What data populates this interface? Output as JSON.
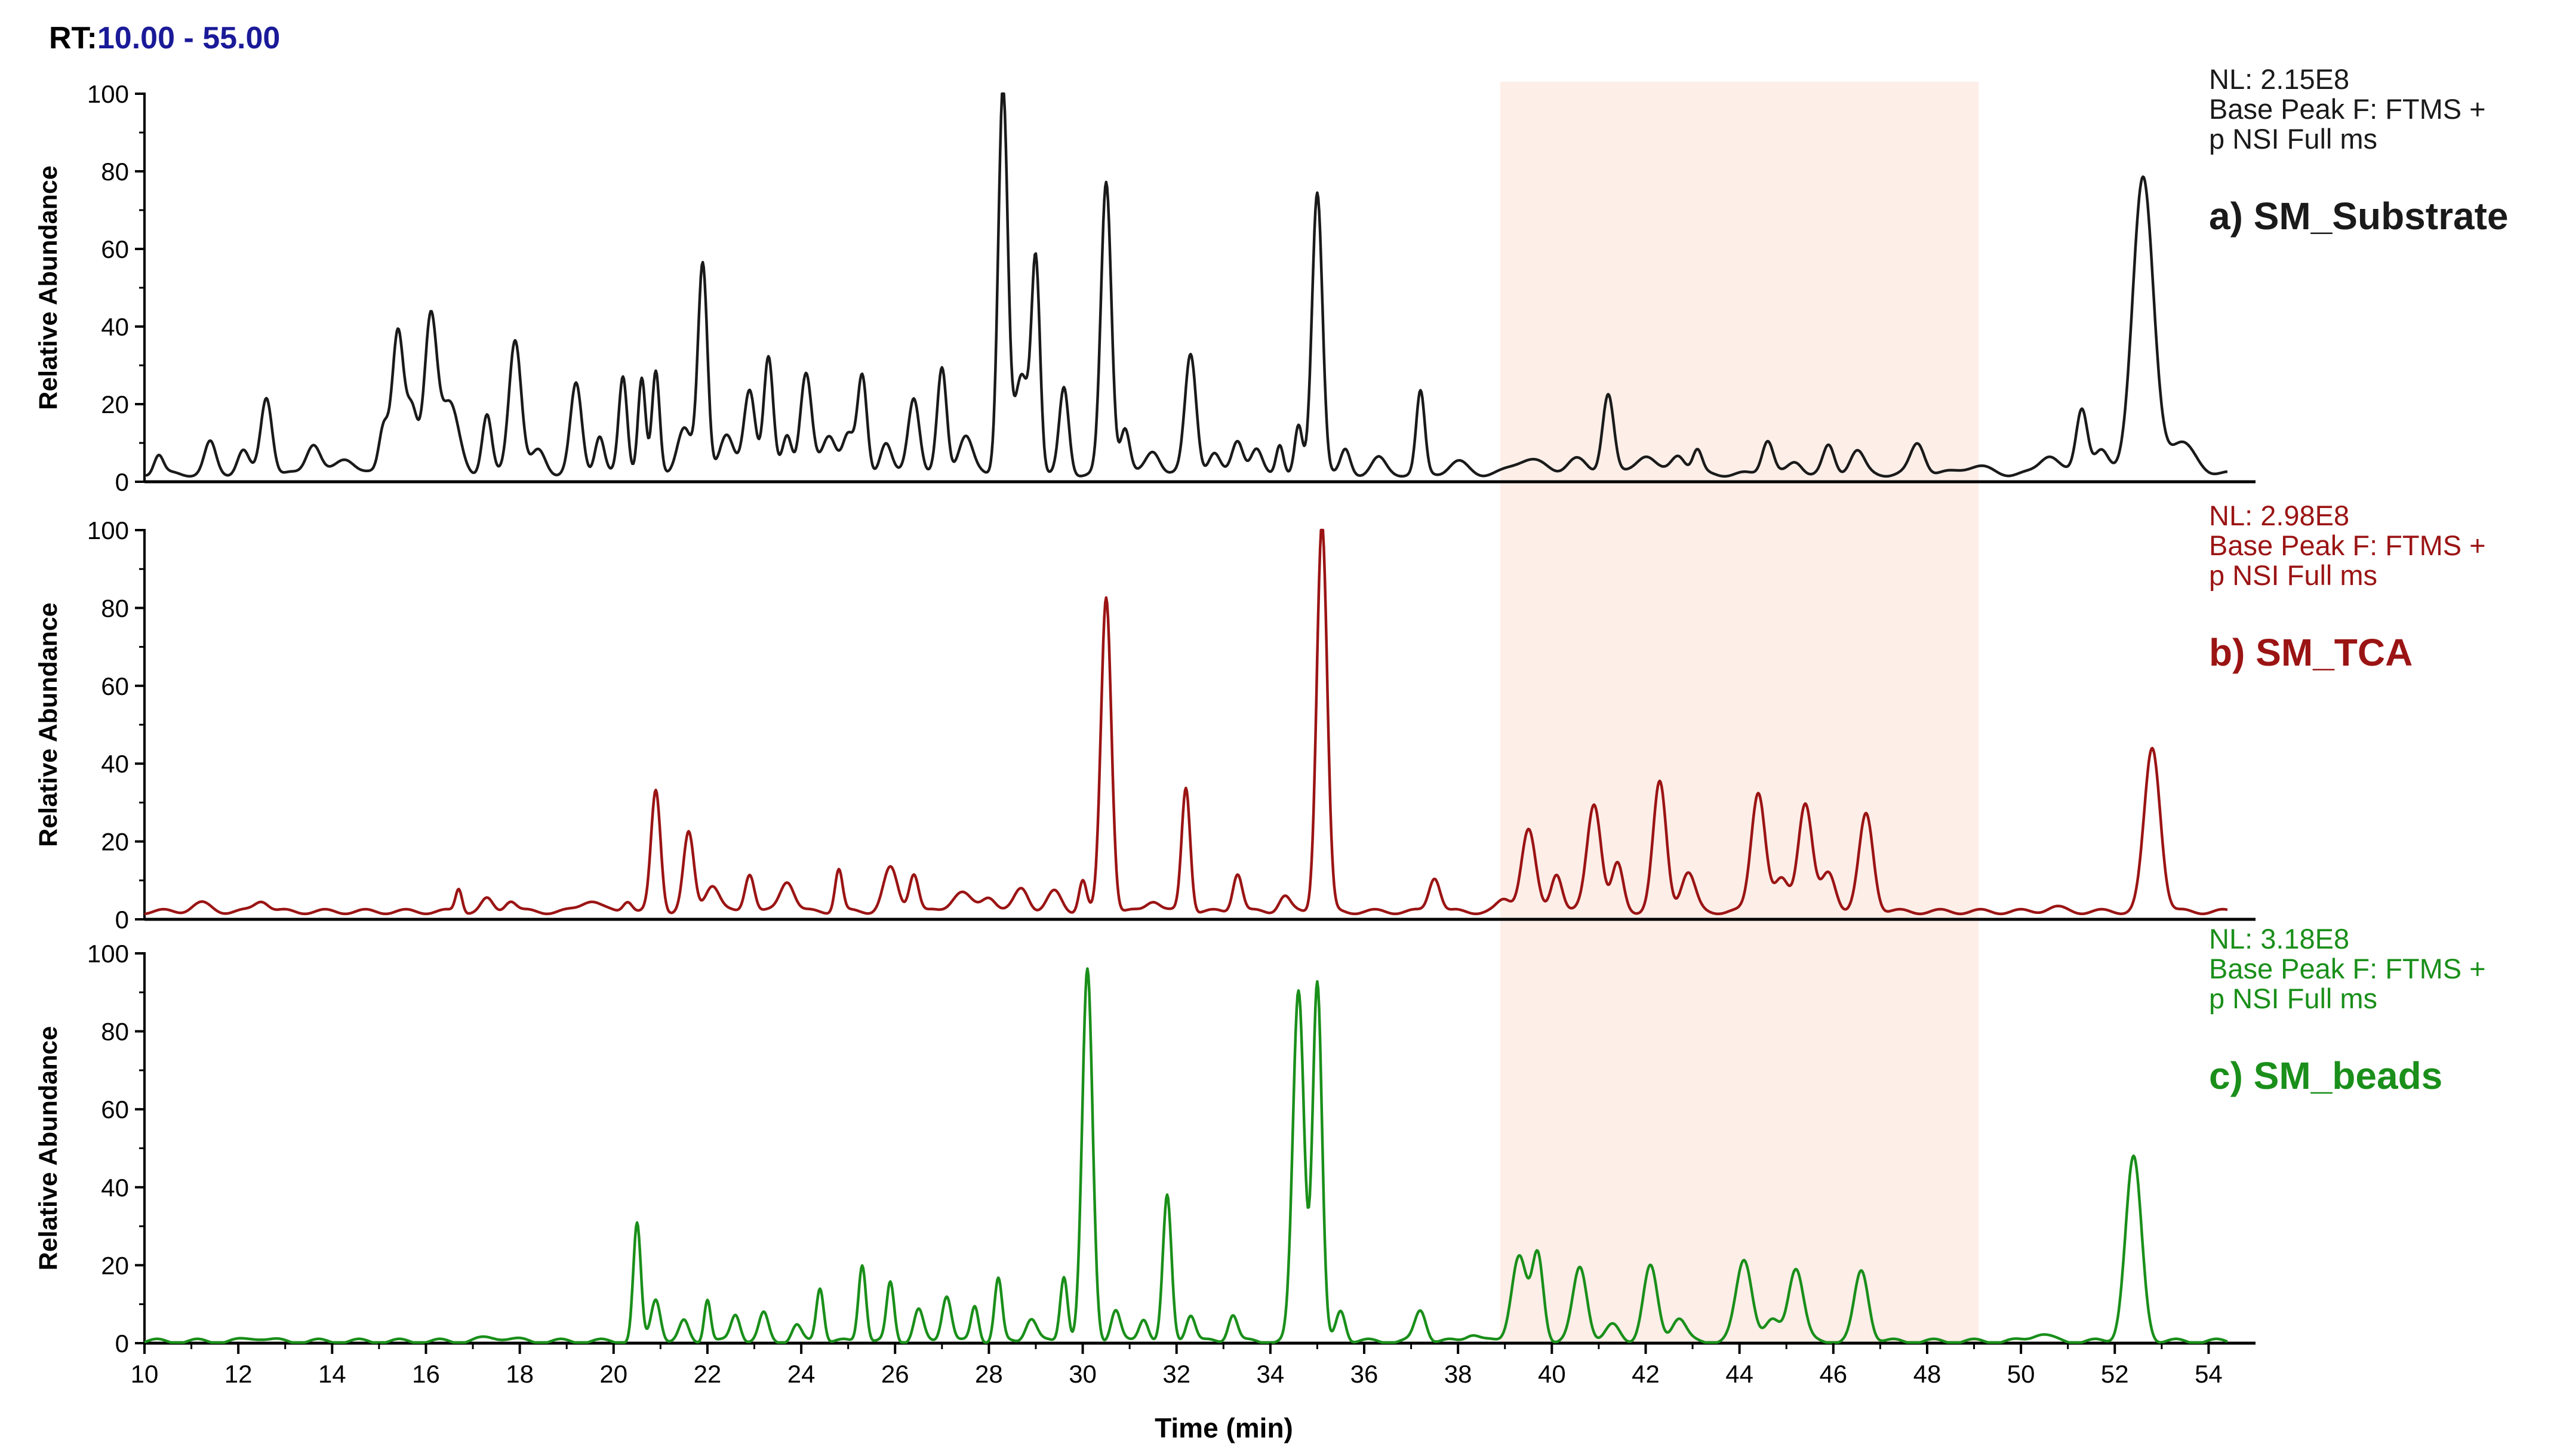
{
  "header": {
    "rt_prefix": "RT:",
    "rt_range": "10.00 - 55.00"
  },
  "colors": {
    "highlight": "#fdeee8",
    "axis": "#000000"
  },
  "chart_data": {
    "type": "line",
    "xlabel": "Time (min)",
    "ylabel": "Relative Abundance",
    "xlim": [
      10,
      55
    ],
    "ylim": [
      0,
      100
    ],
    "xticks": [
      10,
      12,
      14,
      16,
      18,
      20,
      22,
      24,
      26,
      28,
      30,
      32,
      34,
      36,
      38,
      40,
      42,
      44,
      46,
      48,
      50,
      52,
      54
    ],
    "yticks": [
      0,
      20,
      40,
      60,
      80,
      100
    ],
    "highlight_region": [
      38.9,
      49.1
    ],
    "grid": false,
    "panels": [
      {
        "label": "a) SM_Substrate",
        "nl": "NL: 2.15E8",
        "info_line1": "Base Peak F: FTMS +",
        "info_line2": "p NSI Full ms",
        "color": "#1a1a1a",
        "baseline": 2,
        "peaks": [
          [
            10.3,
            5,
            0.1
          ],
          [
            11.4,
            8,
            0.12
          ],
          [
            12.1,
            6,
            0.12
          ],
          [
            12.6,
            20,
            0.12
          ],
          [
            13.6,
            8,
            0.15
          ],
          [
            14.3,
            4,
            0.2
          ],
          [
            15.1,
            12,
            0.1
          ],
          [
            15.4,
            37,
            0.12
          ],
          [
            15.7,
            16,
            0.12
          ],
          [
            16.1,
            40,
            0.13
          ],
          [
            16.5,
            18,
            0.2
          ],
          [
            17.3,
            15,
            0.1
          ],
          [
            17.9,
            35,
            0.13
          ],
          [
            18.4,
            6,
            0.15
          ],
          [
            19.2,
            23,
            0.12
          ],
          [
            19.7,
            10,
            0.1
          ],
          [
            20.2,
            25,
            0.09
          ],
          [
            20.6,
            25,
            0.08
          ],
          [
            20.9,
            26,
            0.08
          ],
          [
            21.5,
            12,
            0.15
          ],
          [
            21.9,
            54,
            0.1
          ],
          [
            22.4,
            10,
            0.15
          ],
          [
            22.9,
            22,
            0.12
          ],
          [
            23.3,
            30,
            0.1
          ],
          [
            23.7,
            10,
            0.1
          ],
          [
            24.1,
            26,
            0.12
          ],
          [
            24.6,
            10,
            0.15
          ],
          [
            25.0,
            10,
            0.12
          ],
          [
            25.3,
            25,
            0.1
          ],
          [
            25.8,
            8,
            0.12
          ],
          [
            26.4,
            20,
            0.12
          ],
          [
            27.0,
            27,
            0.1
          ],
          [
            27.5,
            10,
            0.15
          ],
          [
            28.3,
            100,
            0.1
          ],
          [
            28.7,
            25,
            0.15
          ],
          [
            29.0,
            54,
            0.09
          ],
          [
            29.6,
            22,
            0.1
          ],
          [
            30.5,
            75,
            0.11
          ],
          [
            30.9,
            12,
            0.1
          ],
          [
            31.5,
            6,
            0.15
          ],
          [
            32.3,
            31,
            0.12
          ],
          [
            32.8,
            5,
            0.12
          ],
          [
            33.3,
            9,
            0.12
          ],
          [
            33.7,
            6,
            0.12
          ],
          [
            34.2,
            8,
            0.08
          ],
          [
            34.6,
            12,
            0.08
          ],
          [
            35.0,
            73,
            0.11
          ],
          [
            35.6,
            6,
            0.1
          ],
          [
            36.3,
            4,
            0.15
          ],
          [
            37.2,
            21,
            0.09
          ],
          [
            38.0,
            3,
            0.2
          ],
          [
            39.5,
            4,
            0.3
          ],
          [
            40.5,
            4,
            0.2
          ],
          [
            41.2,
            21,
            0.12
          ],
          [
            42.0,
            5,
            0.2
          ],
          [
            42.7,
            5,
            0.15
          ],
          [
            43.1,
            6,
            0.1
          ],
          [
            44.6,
            9,
            0.12
          ],
          [
            45.2,
            3,
            0.15
          ],
          [
            45.9,
            7,
            0.12
          ],
          [
            46.5,
            6,
            0.15
          ],
          [
            47.8,
            8,
            0.15
          ],
          [
            49.0,
            2,
            0.3
          ],
          [
            50.6,
            5,
            0.2
          ],
          [
            51.3,
            17,
            0.12
          ],
          [
            51.7,
            6,
            0.15
          ],
          [
            52.6,
            76,
            0.22
          ],
          [
            53.4,
            8,
            0.3
          ]
        ]
      },
      {
        "label": "b) SM_TCA",
        "nl": "NL: 2.98E8",
        "info_line1": "Base Peak F: FTMS +",
        "info_line2": "p NSI Full ms",
        "color": "#9b1414",
        "baseline": 2,
        "peaks": [
          [
            11.2,
            2,
            0.2
          ],
          [
            12.5,
            3,
            0.15
          ],
          [
            16.7,
            6,
            0.07
          ],
          [
            17.3,
            3,
            0.12
          ],
          [
            17.8,
            3,
            0.12
          ],
          [
            19.5,
            3,
            0.2
          ],
          [
            20.3,
            3,
            0.1
          ],
          [
            20.9,
            31,
            0.1
          ],
          [
            21.6,
            20,
            0.11
          ],
          [
            22.1,
            7,
            0.15
          ],
          [
            22.9,
            10,
            0.1
          ],
          [
            23.7,
            8,
            0.15
          ],
          [
            24.8,
            11,
            0.08
          ],
          [
            25.9,
            11,
            0.15
          ],
          [
            26.4,
            10,
            0.1
          ],
          [
            27.4,
            5,
            0.2
          ],
          [
            28.0,
            4,
            0.15
          ],
          [
            28.7,
            6,
            0.15
          ],
          [
            29.4,
            5,
            0.15
          ],
          [
            30.0,
            8,
            0.08
          ],
          [
            30.5,
            81,
            0.11
          ],
          [
            31.5,
            3,
            0.15
          ],
          [
            32.2,
            32,
            0.09
          ],
          [
            33.3,
            10,
            0.1
          ],
          [
            34.3,
            4,
            0.12
          ],
          [
            35.1,
            100,
            0.11
          ],
          [
            37.5,
            9,
            0.12
          ],
          [
            39.0,
            3,
            0.15
          ],
          [
            39.5,
            21,
            0.15
          ],
          [
            40.1,
            10,
            0.12
          ],
          [
            40.9,
            28,
            0.15
          ],
          [
            41.4,
            12,
            0.12
          ],
          [
            42.3,
            33,
            0.14
          ],
          [
            42.9,
            10,
            0.15
          ],
          [
            44.4,
            31,
            0.15
          ],
          [
            44.9,
            8,
            0.15
          ],
          [
            45.4,
            28,
            0.15
          ],
          [
            45.9,
            10,
            0.15
          ],
          [
            46.7,
            25,
            0.15
          ],
          [
            50.7,
            1,
            0.2
          ],
          [
            52.8,
            42,
            0.17
          ]
        ]
      },
      {
        "label": "c) SM_beads",
        "nl": "NL: 3.18E8",
        "info_line1": "Base Peak F: FTMS +",
        "info_line2": "p NSI Full ms",
        "color": "#1a8f1a",
        "baseline": 0.5,
        "peaks": [
          [
            12.4,
            1,
            0.2
          ],
          [
            17.5,
            1,
            0.3
          ],
          [
            20.5,
            30,
            0.08
          ],
          [
            20.9,
            11,
            0.1
          ],
          [
            21.5,
            5,
            0.1
          ],
          [
            22.0,
            11,
            0.07
          ],
          [
            22.6,
            7,
            0.1
          ],
          [
            23.2,
            7,
            0.1
          ],
          [
            23.9,
            4,
            0.1
          ],
          [
            24.4,
            14,
            0.08
          ],
          [
            25.3,
            20,
            0.08
          ],
          [
            25.9,
            15,
            0.08
          ],
          [
            26.5,
            8,
            0.1
          ],
          [
            27.1,
            12,
            0.1
          ],
          [
            27.7,
            9,
            0.08
          ],
          [
            28.2,
            16,
            0.08
          ],
          [
            28.9,
            6,
            0.12
          ],
          [
            29.6,
            17,
            0.08
          ],
          [
            30.1,
            95,
            0.11
          ],
          [
            30.7,
            8,
            0.1
          ],
          [
            31.3,
            6,
            0.1
          ],
          [
            31.8,
            37,
            0.09
          ],
          [
            32.3,
            7,
            0.1
          ],
          [
            33.2,
            7,
            0.1
          ],
          [
            34.6,
            90,
            0.12
          ],
          [
            35.0,
            92,
            0.1
          ],
          [
            35.5,
            8,
            0.1
          ],
          [
            37.2,
            8,
            0.12
          ],
          [
            38.3,
            2,
            0.15
          ],
          [
            39.3,
            22,
            0.16
          ],
          [
            39.7,
            22,
            0.12
          ],
          [
            40.6,
            19,
            0.15
          ],
          [
            41.3,
            4,
            0.15
          ],
          [
            42.1,
            19,
            0.15
          ],
          [
            42.7,
            6,
            0.15
          ],
          [
            44.1,
            21,
            0.17
          ],
          [
            44.7,
            5,
            0.15
          ],
          [
            45.2,
            19,
            0.16
          ],
          [
            46.6,
            18,
            0.15
          ],
          [
            50.4,
            2,
            0.2
          ],
          [
            52.4,
            47,
            0.17
          ]
        ]
      }
    ]
  }
}
